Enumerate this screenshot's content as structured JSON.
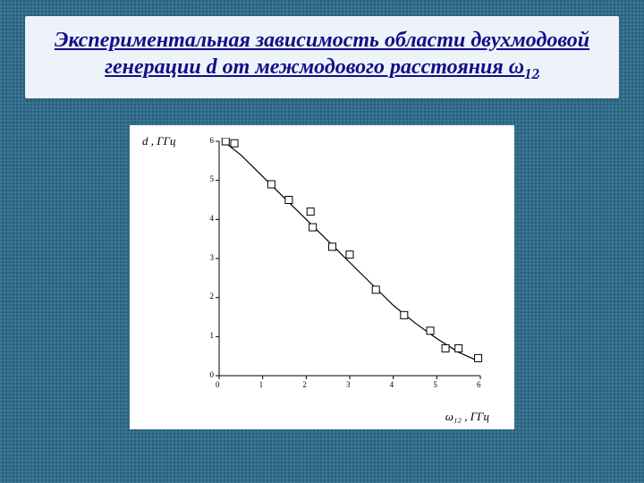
{
  "title_html": "Экспериментальная зависимость области двухмодовой генерации d от межмодового расстояния ω<sub>12</sub>",
  "y_label": "d , ГГц",
  "x_label": "ω₁₂ , ГГц",
  "chart": {
    "type": "scatter-line",
    "background_color": "#ffffff",
    "axis_color": "#000000",
    "xlim": [
      0,
      6
    ],
    "ylim": [
      0,
      6
    ],
    "xticks": [
      0,
      1,
      2,
      3,
      4,
      5,
      6
    ],
    "yticks": [
      0,
      1,
      2,
      3,
      4,
      5,
      6
    ],
    "tick_fontsize": 9,
    "marker_style": "square-open",
    "marker_size": 8,
    "marker_color": "#000000",
    "line_color": "#000000",
    "line_width": 1.2,
    "points": [
      {
        "x": 0.15,
        "y": 6.0
      },
      {
        "x": 0.35,
        "y": 5.95
      },
      {
        "x": 1.2,
        "y": 4.9
      },
      {
        "x": 1.6,
        "y": 4.5
      },
      {
        "x": 2.1,
        "y": 4.2
      },
      {
        "x": 2.15,
        "y": 3.8
      },
      {
        "x": 2.6,
        "y": 3.3
      },
      {
        "x": 3.0,
        "y": 3.1
      },
      {
        "x": 3.6,
        "y": 2.2
      },
      {
        "x": 4.25,
        "y": 1.55
      },
      {
        "x": 4.85,
        "y": 1.15
      },
      {
        "x": 5.2,
        "y": 0.7
      },
      {
        "x": 5.5,
        "y": 0.7
      },
      {
        "x": 5.95,
        "y": 0.45
      }
    ],
    "curve": [
      {
        "x": 0.1,
        "y": 6.0
      },
      {
        "x": 0.5,
        "y": 5.65
      },
      {
        "x": 1.0,
        "y": 5.1
      },
      {
        "x": 1.5,
        "y": 4.55
      },
      {
        "x": 2.0,
        "y": 4.0
      },
      {
        "x": 2.5,
        "y": 3.45
      },
      {
        "x": 3.0,
        "y": 2.9
      },
      {
        "x": 3.5,
        "y": 2.35
      },
      {
        "x": 4.0,
        "y": 1.8
      },
      {
        "x": 4.5,
        "y": 1.35
      },
      {
        "x": 5.0,
        "y": 0.95
      },
      {
        "x": 5.5,
        "y": 0.6
      },
      {
        "x": 6.0,
        "y": 0.35
      }
    ]
  },
  "colors": {
    "slide_bg": "#2a6a8a",
    "title_bg": "#eef3f9",
    "title_fg": "#10108a"
  }
}
